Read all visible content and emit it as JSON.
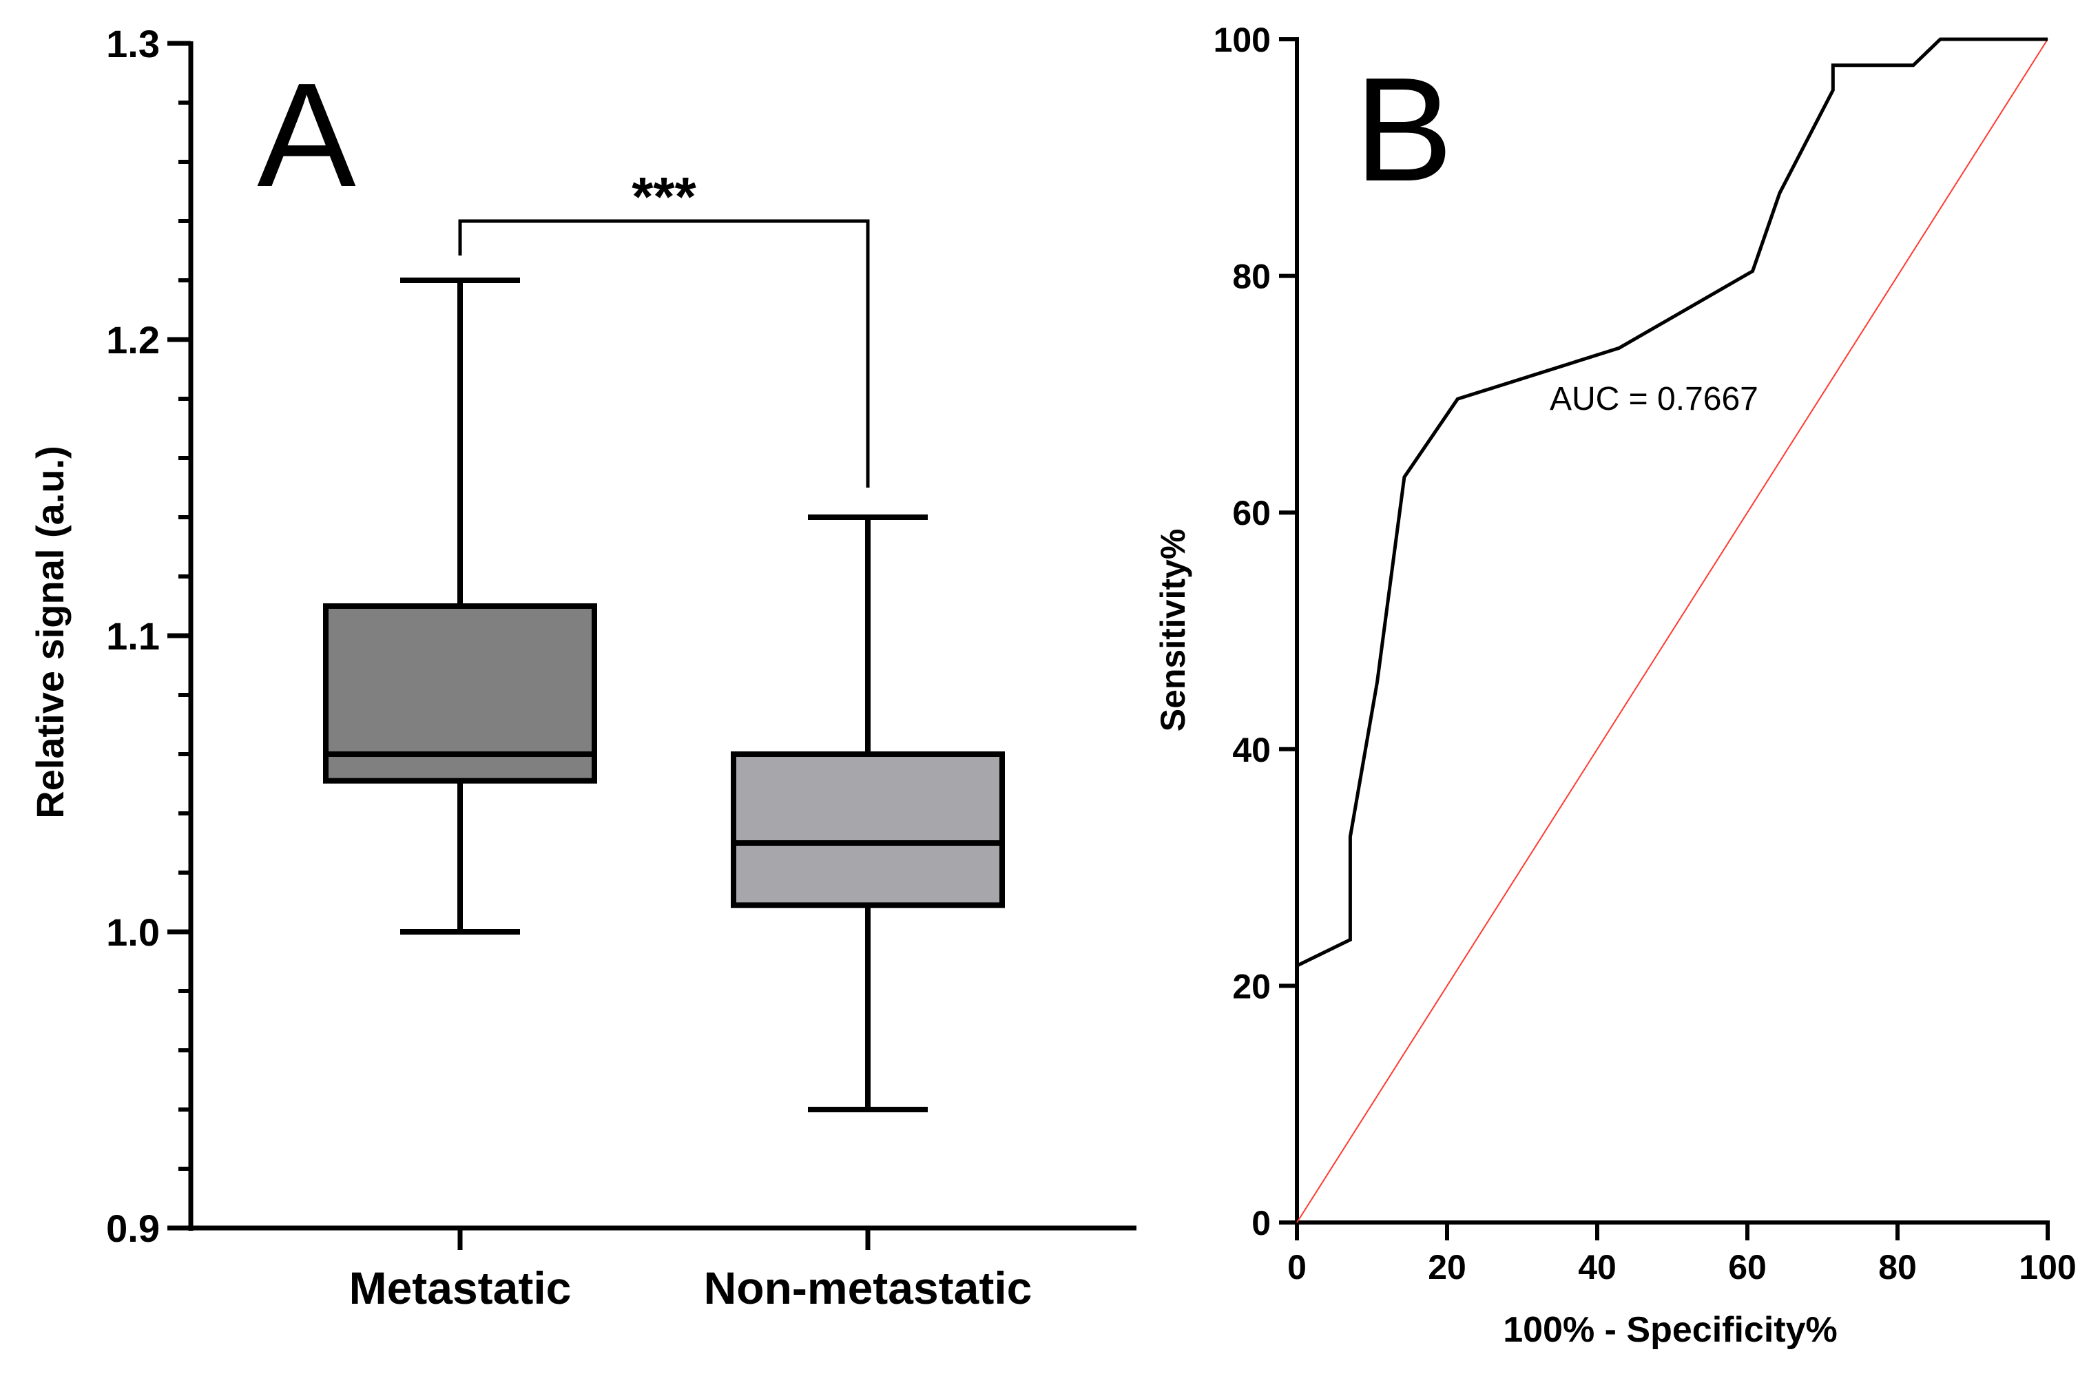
{
  "panels": {
    "a": {
      "letter": "A"
    },
    "b": {
      "letter": "B"
    }
  },
  "colors": {
    "axis": "#000000",
    "box_metastatic": "#808080",
    "box_nonmetastatic": "#a7a6ab",
    "roc_curve": "#000000",
    "reference_line": "#ff3b30"
  },
  "chart_data": [
    {
      "type": "box",
      "panel": "A",
      "title": "",
      "xlabel": "",
      "ylabel": "Relative signal (a.u.)",
      "ylim": [
        0.9,
        1.3
      ],
      "yticks": [
        0.9,
        1.0,
        1.1,
        1.2,
        1.3
      ],
      "ytick_labels": [
        "0.9",
        "1.0",
        "1.1",
        "1.2",
        "1.3"
      ],
      "minor_tick_step": 0.02,
      "categories": [
        "Metastatic",
        "Non-metastatic"
      ],
      "series": [
        {
          "name": "Metastatic",
          "min": 1.0,
          "q1": 1.051,
          "median": 1.06,
          "q3": 1.11,
          "max": 1.22
        },
        {
          "name": "Non-metastatic",
          "min": 0.94,
          "q1": 1.009,
          "median": 1.03,
          "q3": 1.06,
          "max": 1.14
        }
      ],
      "significance": {
        "label": "***",
        "between": [
          "Metastatic",
          "Non-metastatic"
        ],
        "level": 1.24
      }
    },
    {
      "type": "line",
      "panel": "B",
      "title": "",
      "xlabel": "100% - Specificity%",
      "ylabel": "Sensitivity%",
      "xlim": [
        0,
        100
      ],
      "ylim": [
        0,
        100
      ],
      "xticks": [
        0,
        20,
        40,
        60,
        80,
        100
      ],
      "yticks": [
        0,
        20,
        40,
        60,
        80,
        100
      ],
      "xtick_labels": [
        "0",
        "20",
        "40",
        "60",
        "80",
        "100"
      ],
      "ytick_labels": [
        "0",
        "20",
        "40",
        "60",
        "80",
        "100"
      ],
      "annotation": "AUC = 0.7667",
      "series": [
        {
          "name": "ROC",
          "x": [
            0,
            7.1,
            7.1,
            10.7,
            14.3,
            21.4,
            42.9,
            60.7,
            60.7,
            64.3,
            71.4,
            71.4,
            82.1,
            85.7,
            100
          ],
          "y": [
            21.7,
            23.9,
            32.6,
            45.7,
            63.0,
            69.6,
            73.9,
            80.4,
            80.4,
            87.0,
            95.7,
            97.8,
            97.8,
            100,
            100
          ]
        },
        {
          "name": "Reference",
          "x": [
            0,
            100
          ],
          "y": [
            0,
            100
          ]
        }
      ]
    }
  ]
}
